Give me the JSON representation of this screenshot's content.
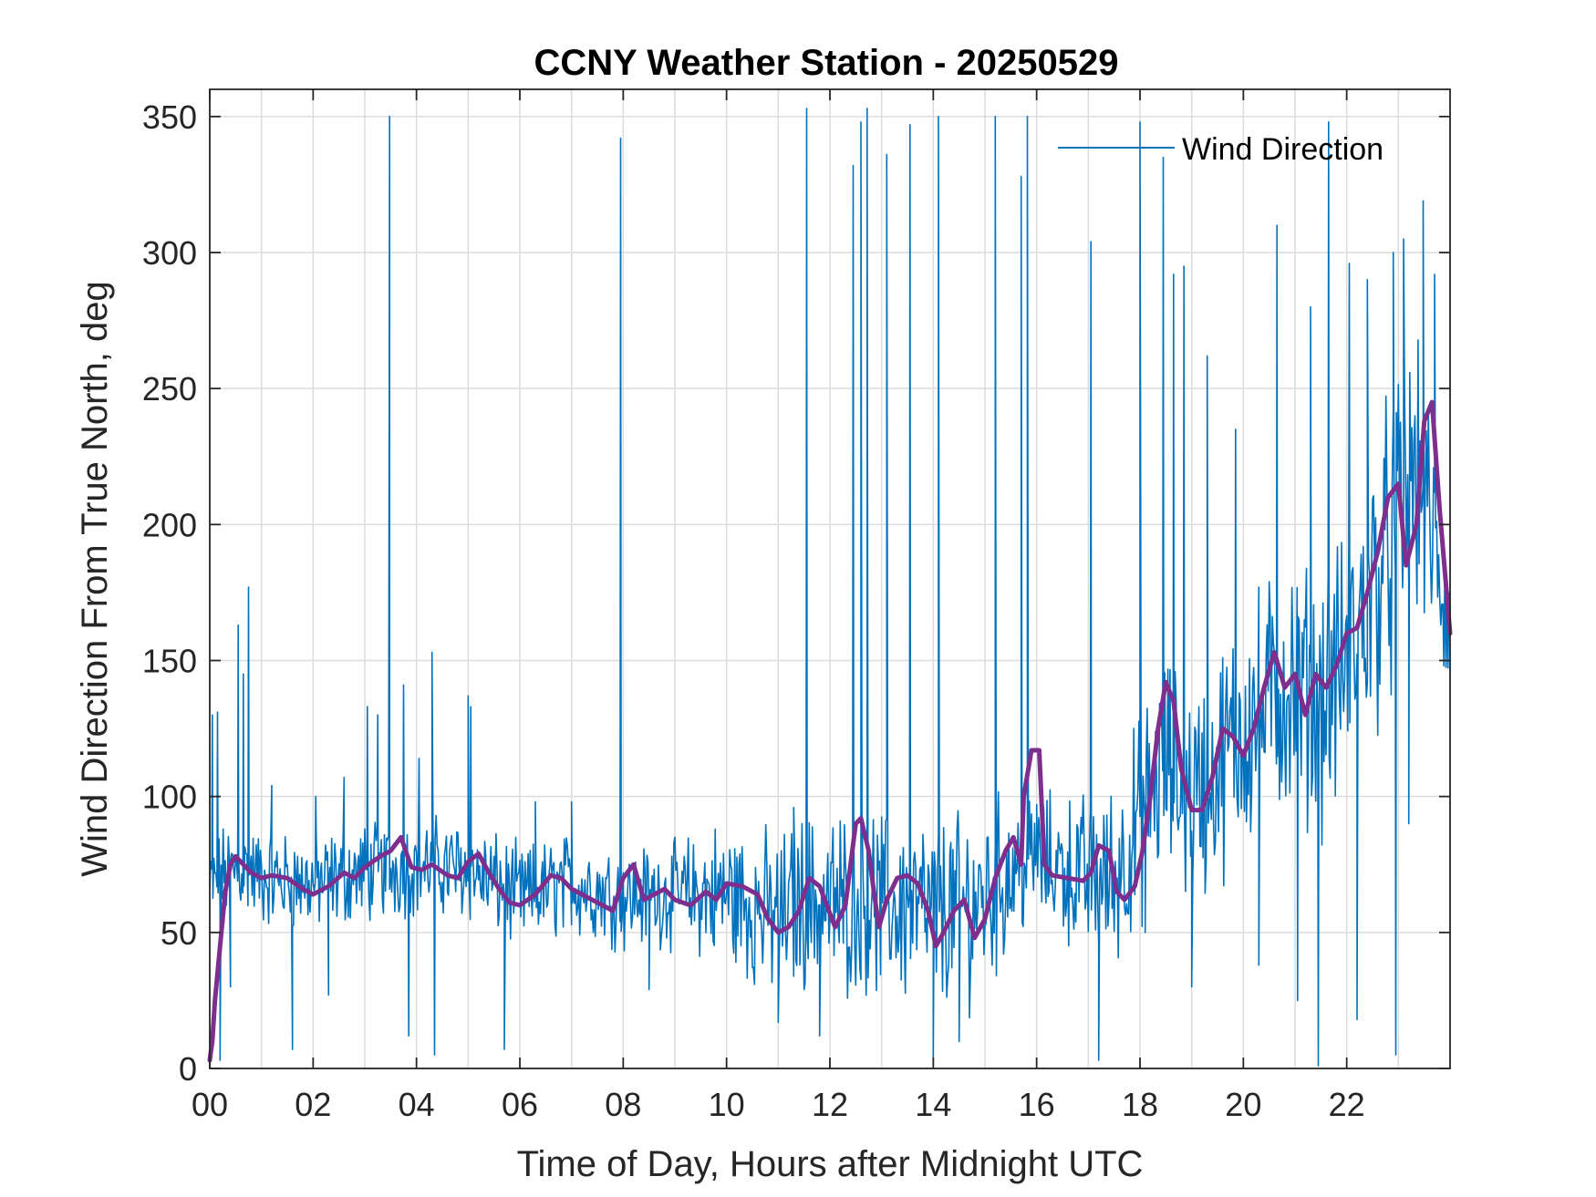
{
  "chart_data": {
    "type": "line",
    "title": "CCNY Weather Station - 20250529",
    "xlabel": "Time of Day, Hours after Midnight UTC",
    "ylabel": "Wind Direction From True North, deg",
    "xlim": [
      0,
      24
    ],
    "ylim": [
      0,
      360
    ],
    "xticks": [
      0,
      2,
      4,
      6,
      8,
      10,
      12,
      14,
      16,
      18,
      20,
      22
    ],
    "xtick_labels": [
      "00",
      "02",
      "04",
      "06",
      "08",
      "10",
      "12",
      "14",
      "16",
      "18",
      "20",
      "22"
    ],
    "yticks": [
      0,
      50,
      100,
      150,
      200,
      250,
      300,
      350
    ],
    "ytick_labels": [
      "0",
      "50",
      "100",
      "150",
      "200",
      "250",
      "300",
      "350"
    ],
    "grid": true,
    "legend": {
      "position": "top-right",
      "entries": [
        "Wind Direction"
      ]
    },
    "colors": {
      "raw": "#0072BD",
      "smoothed": "#7E2F8E",
      "grid": "#dcdcdc",
      "axis": "#262626"
    },
    "series": [
      {
        "name": "Wind Direction",
        "style": "thin",
        "base_profile": {
          "x": [
            0,
            0.3,
            0.6,
            1,
            2,
            3,
            4,
            5,
            6,
            7,
            8,
            9,
            10,
            11,
            11.5,
            12,
            12.5,
            13,
            14,
            14.8,
            15.5,
            16,
            17,
            17.5,
            18,
            18.5,
            19,
            19.5,
            20,
            20.5,
            21,
            21.5,
            22,
            22.5,
            23,
            23.3,
            23.6,
            24
          ],
          "y": [
            65,
            72,
            74,
            70,
            68,
            72,
            75,
            73,
            63,
            68,
            63,
            64,
            64,
            55,
            62,
            60,
            62,
            60,
            57,
            60,
            72,
            78,
            70,
            70,
            92,
            112,
            100,
            110,
            125,
            135,
            140,
            135,
            150,
            175,
            200,
            220,
            200,
            160
          ],
          "noise_amplitude": {
            "x": [
              0,
              9,
              10,
              12,
              15,
              16,
              18,
              20,
              22,
              23,
              24
            ],
            "y": [
              14,
              15,
              22,
              26,
              28,
              18,
              30,
              35,
              38,
              45,
              25
            ]
          },
          "sample_step_hours": 0.02
        },
        "spikes": [
          {
            "x": 0.05,
            "y": 130
          },
          {
            "x": 0.15,
            "y": 131
          },
          {
            "x": 0.2,
            "y": 3
          },
          {
            "x": 0.4,
            "y": 30
          },
          {
            "x": 0.55,
            "y": 163
          },
          {
            "x": 0.65,
            "y": 145
          },
          {
            "x": 0.75,
            "y": 177
          },
          {
            "x": 1.2,
            "y": 104
          },
          {
            "x": 1.6,
            "y": 7
          },
          {
            "x": 2.05,
            "y": 100
          },
          {
            "x": 2.3,
            "y": 27
          },
          {
            "x": 2.6,
            "y": 107
          },
          {
            "x": 3.05,
            "y": 133
          },
          {
            "x": 3.25,
            "y": 130
          },
          {
            "x": 3.48,
            "y": 350
          },
          {
            "x": 3.75,
            "y": 141
          },
          {
            "x": 3.85,
            "y": 12
          },
          {
            "x": 4.05,
            "y": 114
          },
          {
            "x": 4.3,
            "y": 153
          },
          {
            "x": 4.35,
            "y": 5
          },
          {
            "x": 5.0,
            "y": 137
          },
          {
            "x": 5.05,
            "y": 133
          },
          {
            "x": 5.7,
            "y": 7
          },
          {
            "x": 6.3,
            "y": 98
          },
          {
            "x": 7.0,
            "y": 98
          },
          {
            "x": 7.95,
            "y": 342
          },
          {
            "x": 8.5,
            "y": 29
          },
          {
            "x": 11.0,
            "y": 17
          },
          {
            "x": 11.3,
            "y": 96
          },
          {
            "x": 11.55,
            "y": 353
          },
          {
            "x": 11.8,
            "y": 12
          },
          {
            "x": 12.45,
            "y": 332
          },
          {
            "x": 12.6,
            "y": 348
          },
          {
            "x": 12.72,
            "y": 353
          },
          {
            "x": 13.1,
            "y": 336
          },
          {
            "x": 13.55,
            "y": 347
          },
          {
            "x": 14.0,
            "y": 3
          },
          {
            "x": 14.1,
            "y": 350
          },
          {
            "x": 14.5,
            "y": 10
          },
          {
            "x": 15.2,
            "y": 350
          },
          {
            "x": 15.7,
            "y": 328
          },
          {
            "x": 15.82,
            "y": 350
          },
          {
            "x": 16.0,
            "y": 97
          },
          {
            "x": 17.05,
            "y": 304
          },
          {
            "x": 17.2,
            "y": 3
          },
          {
            "x": 18.0,
            "y": 348
          },
          {
            "x": 18.1,
            "y": 50
          },
          {
            "x": 18.45,
            "y": 335
          },
          {
            "x": 18.65,
            "y": 292
          },
          {
            "x": 18.85,
            "y": 295
          },
          {
            "x": 19.0,
            "y": 30
          },
          {
            "x": 19.3,
            "y": 262
          },
          {
            "x": 19.85,
            "y": 235
          },
          {
            "x": 20.3,
            "y": 38
          },
          {
            "x": 20.65,
            "y": 310
          },
          {
            "x": 21.05,
            "y": 25
          },
          {
            "x": 21.3,
            "y": 280
          },
          {
            "x": 21.45,
            "y": 1
          },
          {
            "x": 21.65,
            "y": 348
          },
          {
            "x": 22.05,
            "y": 296
          },
          {
            "x": 22.2,
            "y": 18
          },
          {
            "x": 22.4,
            "y": 290
          },
          {
            "x": 22.9,
            "y": 300
          },
          {
            "x": 22.95,
            "y": 5
          },
          {
            "x": 23.1,
            "y": 305
          },
          {
            "x": 23.2,
            "y": 90
          },
          {
            "x": 23.48,
            "y": 319
          },
          {
            "x": 23.7,
            "y": 292
          }
        ]
      },
      {
        "style": "thick",
        "x": [
          0,
          0.05,
          0.1,
          0.2,
          0.3,
          0.4,
          0.5,
          0.6,
          0.8,
          1.0,
          1.2,
          1.5,
          1.8,
          2.0,
          2.3,
          2.6,
          2.8,
          3.0,
          3.3,
          3.5,
          3.7,
          3.9,
          4.1,
          4.3,
          4.6,
          4.8,
          5.0,
          5.2,
          5.4,
          5.6,
          5.8,
          6.0,
          6.3,
          6.6,
          6.8,
          7.0,
          7.3,
          7.6,
          7.8,
          8.0,
          8.2,
          8.4,
          8.6,
          8.8,
          9.0,
          9.3,
          9.6,
          9.8,
          10.0,
          10.3,
          10.6,
          10.8,
          11.0,
          11.2,
          11.4,
          11.6,
          11.8,
          12.0,
          12.1,
          12.3,
          12.5,
          12.6,
          12.75,
          12.85,
          12.95,
          13.1,
          13.3,
          13.5,
          13.7,
          13.9,
          14.05,
          14.2,
          14.4,
          14.6,
          14.8,
          15.0,
          15.2,
          15.4,
          15.55,
          15.7,
          15.75,
          15.9,
          16.05,
          16.15,
          16.3,
          16.6,
          16.9,
          17.05,
          17.2,
          17.4,
          17.55,
          17.7,
          17.9,
          18.05,
          18.2,
          18.35,
          18.5,
          18.65,
          18.8,
          19.0,
          19.2,
          19.4,
          19.6,
          19.8,
          20.0,
          20.2,
          20.4,
          20.6,
          20.8,
          21.0,
          21.2,
          21.4,
          21.6,
          21.8,
          22.0,
          22.2,
          22.4,
          22.6,
          22.8,
          23.0,
          23.15,
          23.35,
          23.5,
          23.65,
          23.8,
          24.0
        ],
        "y": [
          3,
          10,
          25,
          45,
          65,
          75,
          78,
          76,
          72,
          70,
          71,
          70,
          66,
          64,
          67,
          72,
          70,
          74,
          78,
          80,
          85,
          74,
          73,
          75,
          71,
          70,
          76,
          79,
          72,
          66,
          61,
          60,
          64,
          71,
          70,
          66,
          63,
          60,
          58,
          70,
          75,
          62,
          64,
          66,
          62,
          60,
          65,
          62,
          68,
          67,
          64,
          55,
          50,
          52,
          58,
          70,
          67,
          57,
          52,
          60,
          90,
          92,
          80,
          65,
          52,
          62,
          70,
          71,
          68,
          58,
          45,
          50,
          58,
          62,
          48,
          55,
          70,
          80,
          85,
          75,
          100,
          117,
          117,
          75,
          71,
          70,
          69,
          72,
          82,
          80,
          65,
          62,
          67,
          80,
          100,
          125,
          142,
          135,
          110,
          95,
          95,
          107,
          125,
          122,
          115,
          125,
          140,
          153,
          140,
          145,
          130,
          145,
          140,
          148,
          160,
          162,
          175,
          190,
          210,
          215,
          185,
          200,
          238,
          245,
          205,
          160
        ]
      }
    ]
  }
}
